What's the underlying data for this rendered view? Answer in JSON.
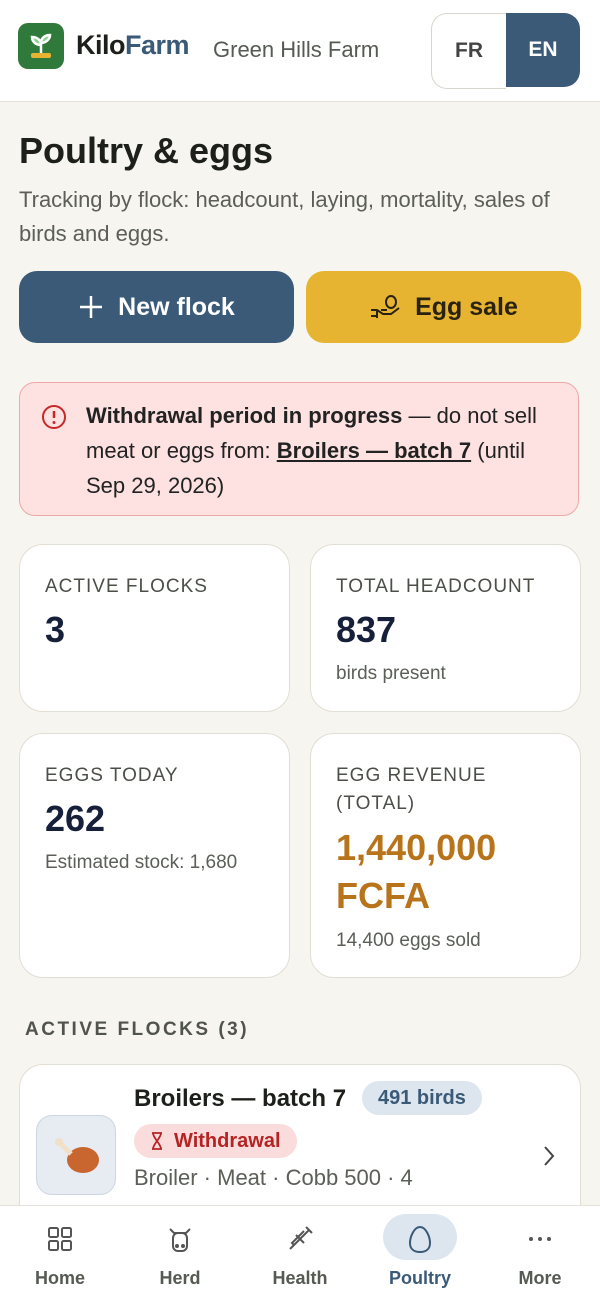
{
  "header": {
    "brand": [
      "Kilo",
      "Farm"
    ],
    "farm_name": "Green Hills Farm",
    "languages": [
      "FR",
      "EN"
    ]
  },
  "page": {
    "title": "Poultry & eggs",
    "subtitle": "Tracking by flock: headcount, laying, mortality, sales of birds and eggs."
  },
  "actions": [
    "New flock",
    "Egg sale"
  ],
  "alert": {
    "title": "Withdrawal period in progress",
    "text": " — do not sell meat or eggs from: ",
    "link": "Broilers — batch 7",
    "until": "(until Sep 29, 2026)"
  },
  "stats": [
    {
      "label": "ACTIVE FLOCKS",
      "value": "3"
    },
    {
      "label": "TOTAL HEADCOUNT",
      "value": "837",
      "note": "birds present"
    },
    {
      "label": "EGGS TODAY",
      "value": "262",
      "note": "Estimated stock: 1,680"
    },
    {
      "label": "EGG REVENUE (TOTAL)",
      "value": "1,440,000 FCFA",
      "note": "14,400 eggs sold"
    }
  ],
  "section": "ACTIVE FLOCKS (3)",
  "flocks": [
    {
      "name": "Broilers — batch 7",
      "count": "491 birds",
      "badge": "Withdrawal",
      "details": "Broiler · Meat · Cobb 500 · 4"
    }
  ],
  "nav": [
    "Home",
    "Herd",
    "Health",
    "Poultry",
    "More"
  ]
}
